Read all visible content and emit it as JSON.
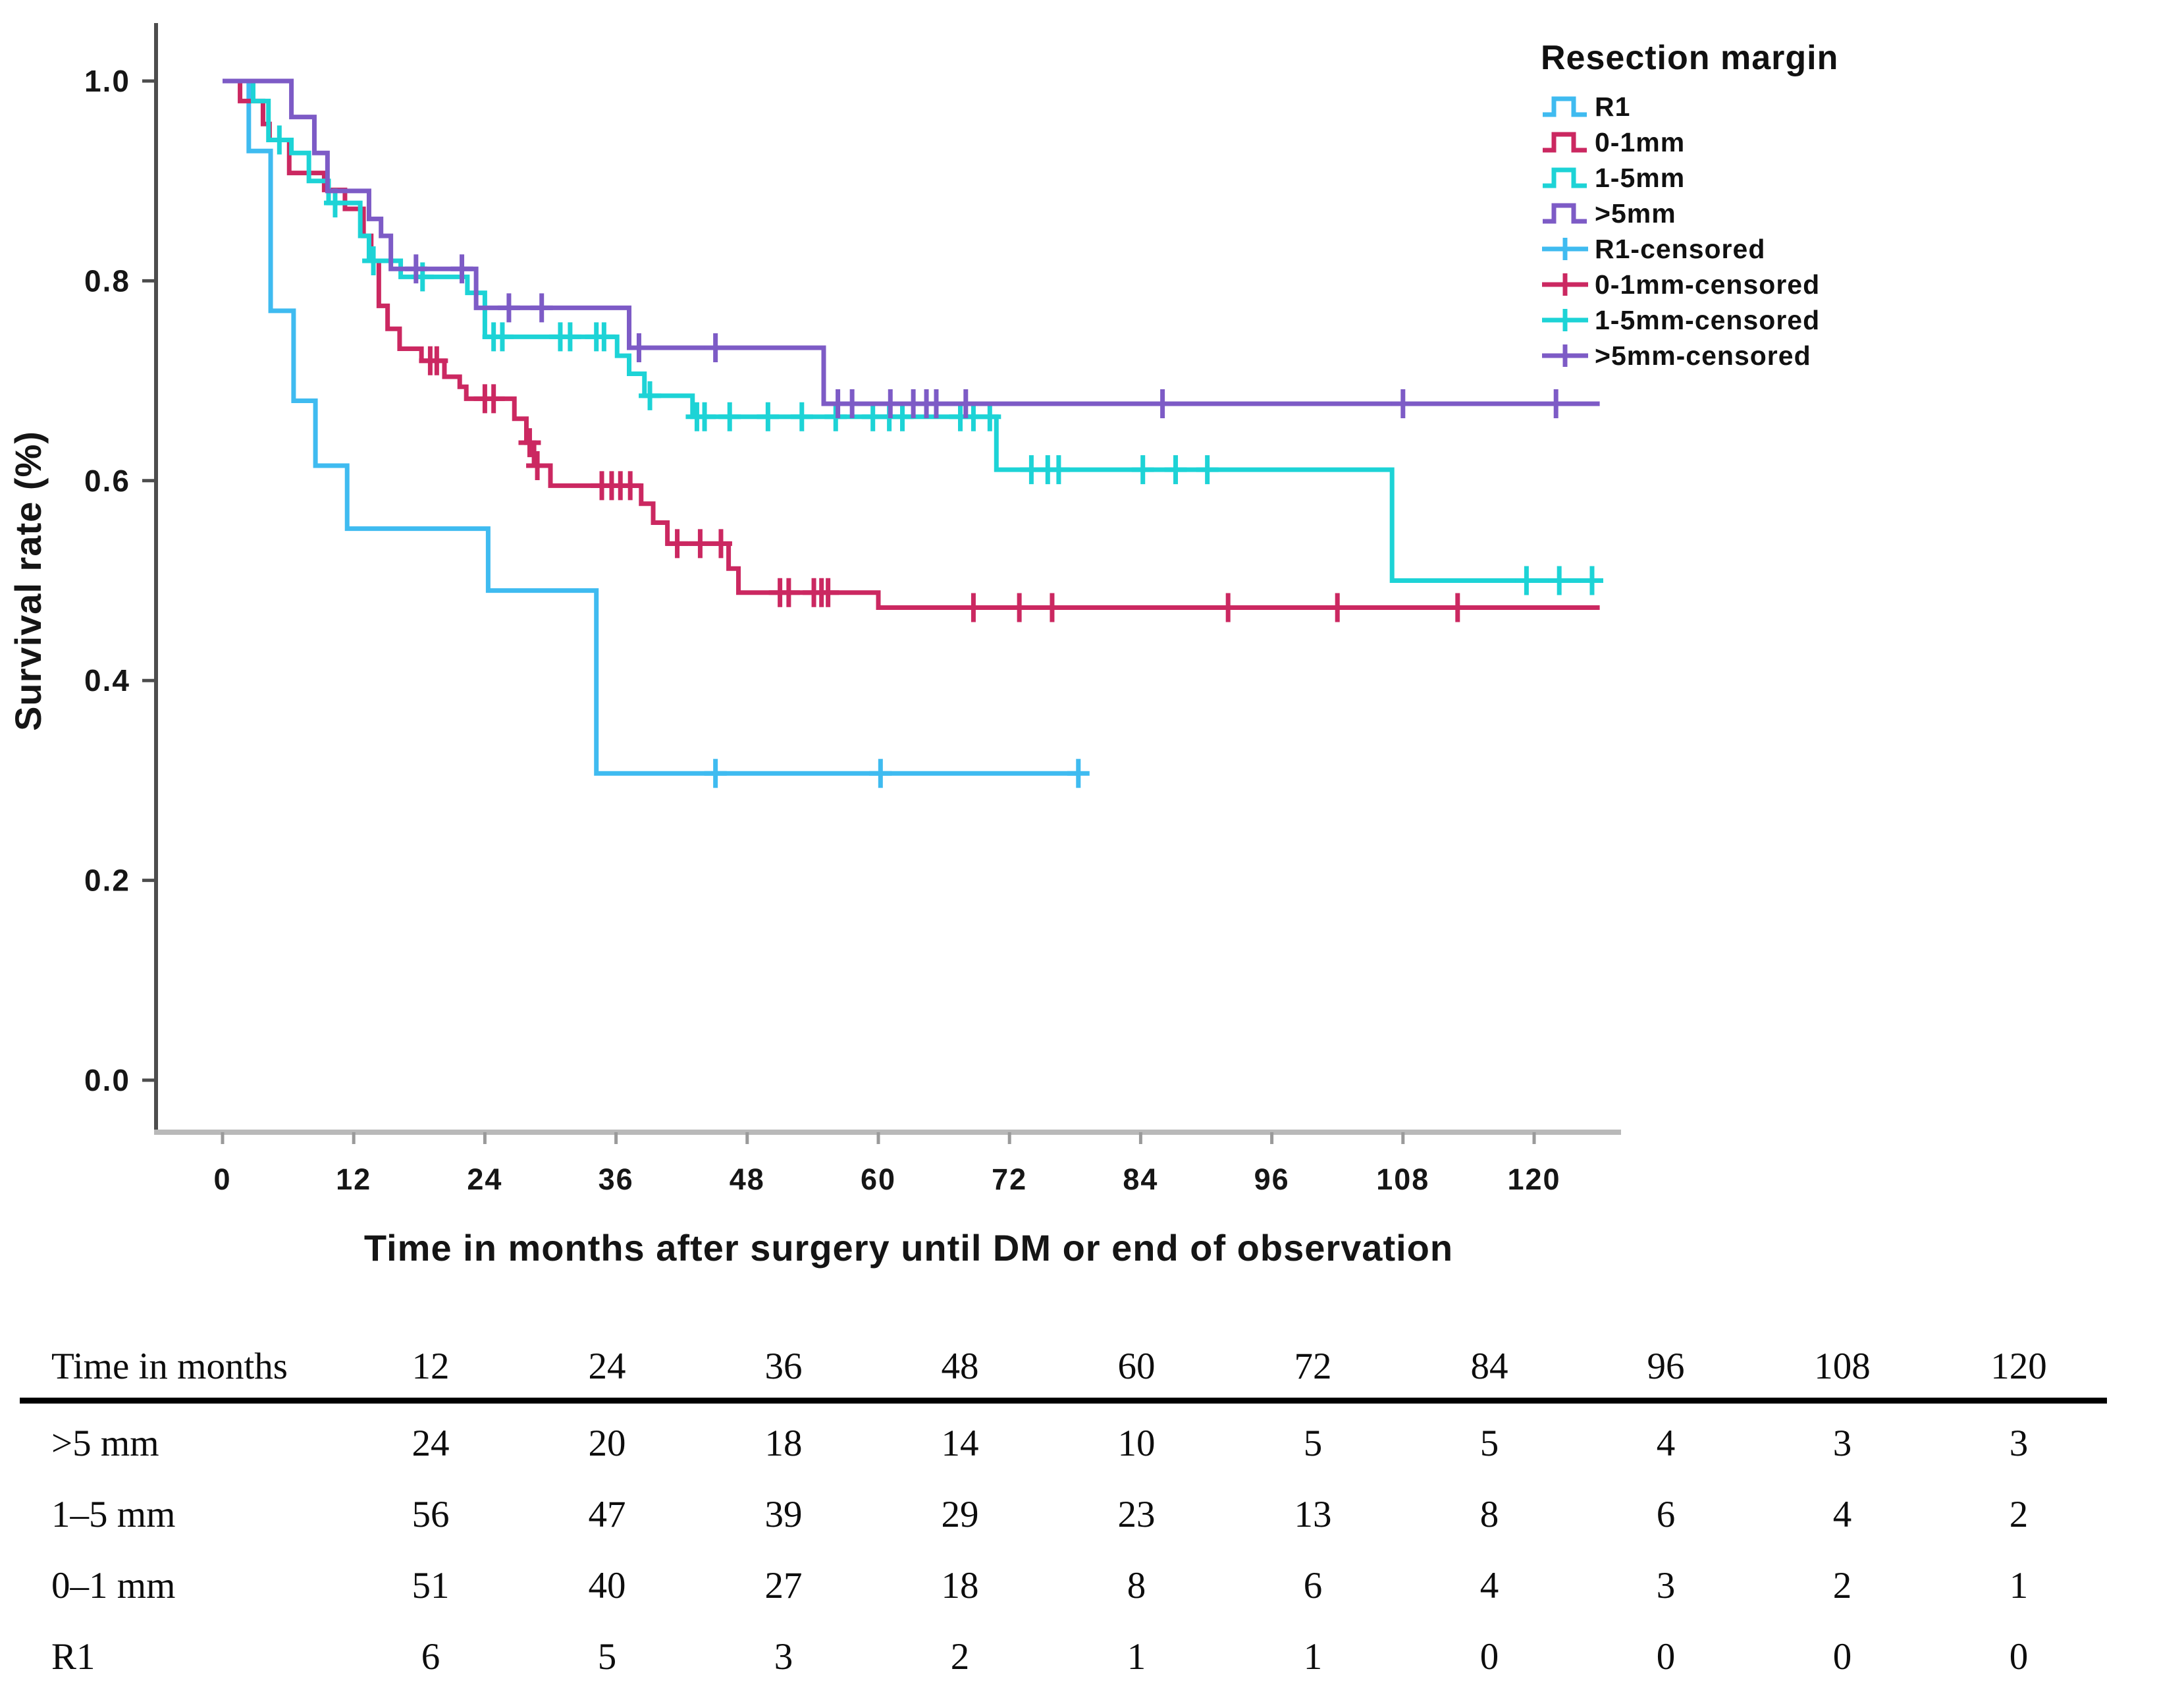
{
  "chart_data": {
    "type": "line",
    "subtype": "kaplan-meier-step",
    "title": "",
    "xlabel": "Time in months after surgery until DM or end of observation",
    "ylabel": "Survival rate (%)",
    "legend_title": "Resection margin",
    "xticks": [
      0,
      12,
      24,
      36,
      48,
      60,
      72,
      84,
      96,
      108,
      120
    ],
    "yticks": [
      0.0,
      0.2,
      0.4,
      0.6,
      0.8,
      1.0
    ],
    "xlim": [
      0,
      126
    ],
    "ylim": [
      0.0,
      1.0
    ],
    "grid": false,
    "legend_position": "upper-right-outside",
    "axis_colors": {
      "left_spine": "#4d4d4d",
      "bottom_spine": "#b9b9b9",
      "tick_label": "#161616"
    },
    "legend_entries": [
      "R1",
      "0-1mm",
      "1-5mm",
      ">5mm",
      "R1-censored",
      "0-1mm-censored",
      "1-5mm-censored",
      ">5mm-censored"
    ],
    "series": [
      {
        "name": "R1",
        "color": "#3fbbf0",
        "end": 78.3,
        "steps": [
          [
            0,
            1.0
          ],
          [
            2.4,
            0.93
          ],
          [
            4.4,
            0.77
          ],
          [
            6.5,
            0.68
          ],
          [
            8.5,
            0.615
          ],
          [
            11.4,
            0.552
          ],
          [
            24.3,
            0.49
          ],
          [
            34.2,
            0.307
          ]
        ],
        "censors": [
          [
            45.1,
            0.307
          ],
          [
            60.2,
            0.307
          ],
          [
            78.3,
            0.307
          ]
        ]
      },
      {
        "name": "0-1mm",
        "color": "#cb2861",
        "end": 126,
        "steps": [
          [
            0,
            1.0
          ],
          [
            1.6,
            0.98
          ],
          [
            3.7,
            0.957
          ],
          [
            4.3,
            0.941
          ],
          [
            6.1,
            0.908
          ],
          [
            9.3,
            0.891
          ],
          [
            11.2,
            0.872
          ],
          [
            12.9,
            0.845
          ],
          [
            13.6,
            0.82
          ],
          [
            14.3,
            0.775
          ],
          [
            15.1,
            0.752
          ],
          [
            16.2,
            0.732
          ],
          [
            18.2,
            0.72
          ],
          [
            20.3,
            0.704
          ],
          [
            21.7,
            0.694
          ],
          [
            22.3,
            0.682
          ],
          [
            26.7,
            0.662
          ],
          [
            27.8,
            0.638
          ],
          [
            28.5,
            0.615
          ],
          [
            30,
            0.595
          ],
          [
            38.3,
            0.577
          ],
          [
            39.4,
            0.558
          ],
          [
            40.7,
            0.537
          ],
          [
            46.3,
            0.512
          ],
          [
            47.2,
            0.488
          ],
          [
            60,
            0.473
          ]
        ],
        "censors": [
          [
            19,
            0.72
          ],
          [
            19.6,
            0.72
          ],
          [
            24,
            0.682
          ],
          [
            24.8,
            0.682
          ],
          [
            28.1,
            0.638
          ],
          [
            28.8,
            0.615
          ],
          [
            34.7,
            0.595
          ],
          [
            35.6,
            0.595
          ],
          [
            36.4,
            0.595
          ],
          [
            37.3,
            0.595
          ],
          [
            41.6,
            0.537
          ],
          [
            43.7,
            0.537
          ],
          [
            45.6,
            0.537
          ],
          [
            51,
            0.488
          ],
          [
            51.8,
            0.488
          ],
          [
            54.1,
            0.488
          ],
          [
            54.8,
            0.488
          ],
          [
            55.4,
            0.488
          ],
          [
            68.7,
            0.473
          ],
          [
            72.9,
            0.473
          ],
          [
            75.9,
            0.473
          ],
          [
            92,
            0.473
          ],
          [
            102,
            0.473
          ],
          [
            113,
            0.473
          ]
        ]
      },
      {
        "name": "1-5mm",
        "color": "#1dd3d6",
        "end": 126,
        "steps": [
          [
            0,
            1.0
          ],
          [
            2.8,
            0.98
          ],
          [
            4.2,
            0.941
          ],
          [
            6.3,
            0.928
          ],
          [
            7.9,
            0.9
          ],
          [
            9.7,
            0.878
          ],
          [
            12.6,
            0.845
          ],
          [
            13.4,
            0.82
          ],
          [
            16.3,
            0.804
          ],
          [
            22.4,
            0.788
          ],
          [
            24,
            0.744
          ],
          [
            36.1,
            0.725
          ],
          [
            37.2,
            0.707
          ],
          [
            38.6,
            0.685
          ],
          [
            43,
            0.664
          ],
          [
            70.8,
            0.611
          ],
          [
            107,
            0.5
          ]
        ],
        "censors": [
          [
            5.2,
            0.941
          ],
          [
            10.3,
            0.878
          ],
          [
            13.8,
            0.82
          ],
          [
            18.3,
            0.804
          ],
          [
            24.8,
            0.744
          ],
          [
            25.6,
            0.744
          ],
          [
            30.9,
            0.744
          ],
          [
            31.8,
            0.744
          ],
          [
            34.2,
            0.744
          ],
          [
            34.9,
            0.744
          ],
          [
            39.1,
            0.685
          ],
          [
            43.4,
            0.664
          ],
          [
            44.1,
            0.664
          ],
          [
            46.4,
            0.664
          ],
          [
            49.9,
            0.664
          ],
          [
            53,
            0.664
          ],
          [
            56.1,
            0.664
          ],
          [
            59.5,
            0.664
          ],
          [
            61,
            0.664
          ],
          [
            62.2,
            0.664
          ],
          [
            67.5,
            0.664
          ],
          [
            68.7,
            0.664
          ],
          [
            70.2,
            0.664
          ],
          [
            74,
            0.611
          ],
          [
            75.5,
            0.611
          ],
          [
            76.5,
            0.611
          ],
          [
            84.2,
            0.611
          ],
          [
            87.2,
            0.611
          ],
          [
            90.1,
            0.611
          ],
          [
            119.3,
            0.5
          ],
          [
            122.3,
            0.5
          ],
          [
            125.3,
            0.5
          ]
        ]
      },
      {
        "name": ">5mm",
        "color": "#7d5bc6",
        "end": 126,
        "steps": [
          [
            0,
            1.0
          ],
          [
            6.3,
            0.964
          ],
          [
            8.4,
            0.928
          ],
          [
            9.6,
            0.89
          ],
          [
            13.4,
            0.862
          ],
          [
            14.5,
            0.845
          ],
          [
            15.4,
            0.812
          ],
          [
            23.2,
            0.773
          ],
          [
            37.2,
            0.733
          ],
          [
            55,
            0.677
          ]
        ],
        "censors": [
          [
            17.7,
            0.812
          ],
          [
            21.9,
            0.812
          ],
          [
            26.2,
            0.773
          ],
          [
            29.2,
            0.773
          ],
          [
            38.1,
            0.733
          ],
          [
            45.1,
            0.733
          ],
          [
            56.3,
            0.677
          ],
          [
            57.6,
            0.677
          ],
          [
            61.1,
            0.677
          ],
          [
            63.2,
            0.677
          ],
          [
            64.4,
            0.677
          ],
          [
            65.3,
            0.677
          ],
          [
            68,
            0.677
          ],
          [
            86,
            0.677
          ],
          [
            108,
            0.677
          ],
          [
            122,
            0.677
          ]
        ]
      }
    ]
  },
  "risk_table": {
    "row_header_label": "Time in months",
    "time_points": [
      "12",
      "24",
      "36",
      "48",
      "60",
      "72",
      "84",
      "96",
      "108",
      "120"
    ],
    "rows": [
      {
        "label": ">5 mm",
        "values": [
          "24",
          "20",
          "18",
          "14",
          "10",
          "5",
          "5",
          "4",
          "3",
          "3"
        ]
      },
      {
        "label": "1–5 mm",
        "values": [
          "56",
          "47",
          "39",
          "29",
          "23",
          "13",
          "8",
          "6",
          "4",
          "2"
        ]
      },
      {
        "label": "0–1 mm",
        "values": [
          "51",
          "40",
          "27",
          "18",
          "8",
          "6",
          "4",
          "3",
          "2",
          "1"
        ]
      },
      {
        "label": "R1",
        "values": [
          "6",
          "5",
          "3",
          "2",
          "1",
          "1",
          "0",
          "0",
          "0",
          "0"
        ]
      }
    ]
  }
}
